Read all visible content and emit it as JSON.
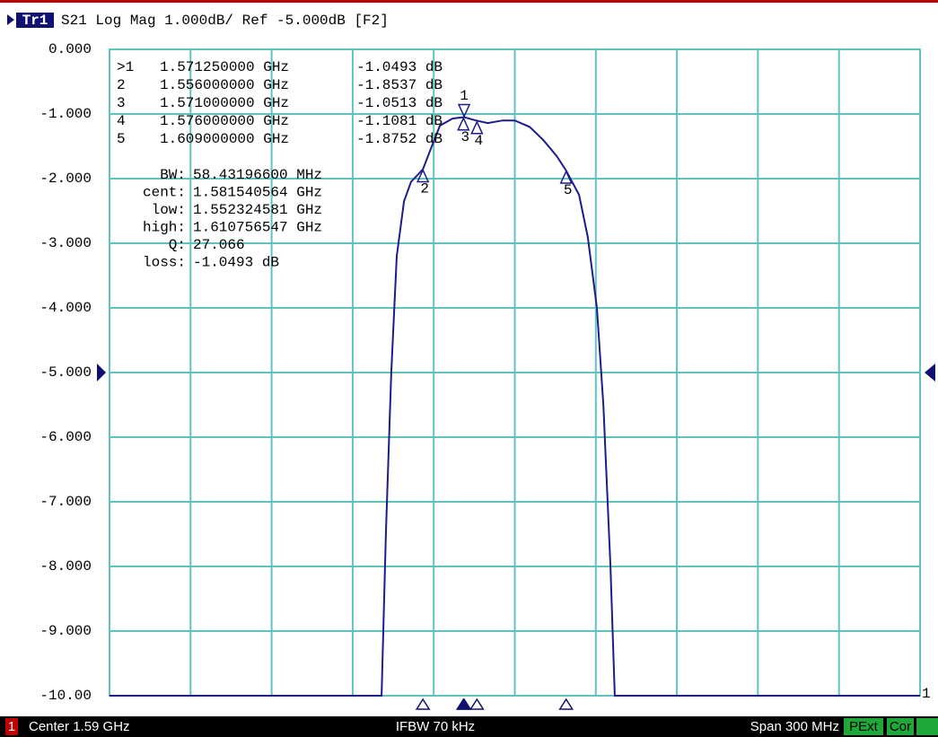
{
  "header": {
    "trace": "Tr1",
    "title": "S21 Log Mag 1.000dB/ Ref -5.000dB [F2]"
  },
  "chart_data": {
    "type": "line",
    "trace_label": "1",
    "xlim": [
      1.44,
      1.74
    ],
    "ylim": [
      -10,
      0
    ],
    "xdivisions": 10,
    "yticks": [
      {
        "value": 0,
        "label": "0.000"
      },
      {
        "value": -1,
        "label": "-1.000"
      },
      {
        "value": -2,
        "label": "-2.000"
      },
      {
        "value": -3,
        "label": "-3.000"
      },
      {
        "value": -4,
        "label": "-4.000"
      },
      {
        "value": -5,
        "label": "-5.000"
      },
      {
        "value": -6,
        "label": "-6.000"
      },
      {
        "value": -7,
        "label": "-7.000"
      },
      {
        "value": -8,
        "label": "-8.000"
      },
      {
        "value": -9,
        "label": "-9.000"
      },
      {
        "value": -10,
        "label": "-10.00"
      }
    ],
    "grid": true,
    "ref_level": -5,
    "series": [
      {
        "color": "#1c1c8c",
        "x": [
          1.44,
          1.5407,
          1.5423,
          1.5443,
          1.5463,
          1.549,
          1.5516,
          1.556,
          1.559,
          1.5623,
          1.567,
          1.57125,
          1.5756,
          1.58,
          1.5855,
          1.59,
          1.5955,
          1.6005,
          1.6055,
          1.609,
          1.6138,
          1.617,
          1.6204,
          1.6228,
          1.6254,
          1.627,
          1.74
        ],
        "values": [
          -10,
          -10,
          -7.5,
          -5.0,
          -3.2,
          -2.35,
          -2.05,
          -1.8537,
          -1.53,
          -1.18,
          -1.07,
          -1.0493,
          -1.1,
          -1.14,
          -1.1,
          -1.1,
          -1.2,
          -1.4,
          -1.65,
          -1.8752,
          -2.25,
          -2.9,
          -4.0,
          -5.5,
          -8.0,
          -10,
          -10
        ]
      }
    ],
    "markers": [
      {
        "label": ">1",
        "number": "1",
        "x": 1.57125,
        "y": -1.0493,
        "x_label": "1.571250000 GHz",
        "y_label": "-1.0493 dB",
        "active": true
      },
      {
        "label": "2",
        "number": "2",
        "x": 1.556,
        "y": -1.8537,
        "x_label": "1.556000000 GHz",
        "y_label": "-1.8537 dB",
        "active": false
      },
      {
        "label": "3",
        "number": "3",
        "x": 1.571,
        "y": -1.0513,
        "x_label": "1.571000000 GHz",
        "y_label": "-1.0513 dB",
        "active": false
      },
      {
        "label": "4",
        "number": "4",
        "x": 1.576,
        "y": -1.1081,
        "x_label": "1.576000000 GHz",
        "y_label": "-1.1081 dB",
        "active": false
      },
      {
        "label": "5",
        "number": "5",
        "x": 1.609,
        "y": -1.8752,
        "x_label": "1.609000000 GHz",
        "y_label": "-1.8752 dB",
        "active": false
      }
    ],
    "stats": [
      {
        "label": "BW:",
        "value": "58.43196600 MHz"
      },
      {
        "label": "cent:",
        "value": "1.581540564 GHz"
      },
      {
        "label": "low:",
        "value": "1.552324581 GHz"
      },
      {
        "label": "high:",
        "value": "1.610756547 GHz"
      },
      {
        "label": "Q:",
        "value": "27.066"
      },
      {
        "label": "loss:",
        "value": "-1.0493 dB"
      }
    ]
  },
  "footer": {
    "channel": "1",
    "center": "Center 1.59 GHz",
    "ifbw": "IFBW 70 kHz",
    "span": "Span 300 MHz",
    "status": [
      "PExt",
      "Cor"
    ]
  }
}
